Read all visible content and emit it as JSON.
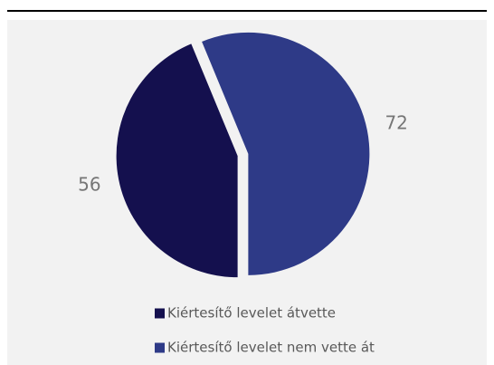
{
  "chart_data": {
    "type": "pie",
    "categories": [
      "Kiértesítő levelet átvette",
      "Kiértesítő levelet nem vette át"
    ],
    "values": [
      56,
      72
    ],
    "colors": [
      "#14104e",
      "#2e3a87"
    ],
    "legend": "bottom"
  }
}
